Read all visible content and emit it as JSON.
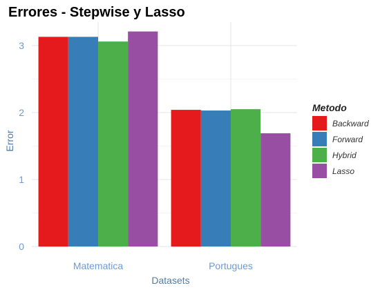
{
  "chart_data": {
    "type": "bar",
    "title": "Errores - Stepwise y Lasso",
    "xlabel": "Datasets",
    "ylabel": "Error",
    "categories": [
      "Matematica",
      "Portugues"
    ],
    "series": [
      {
        "name": "Backward",
        "color": "#E41A1C",
        "values": [
          3.13,
          2.04
        ]
      },
      {
        "name": "Forward",
        "color": "#377EB8",
        "values": [
          3.13,
          2.03
        ]
      },
      {
        "name": "Hybrid",
        "color": "#4DAF4A",
        "values": [
          3.06,
          2.05
        ]
      },
      {
        "name": "Lasso",
        "color": "#984EA3",
        "values": [
          3.21,
          1.69
        ]
      }
    ],
    "ylim": [
      0,
      3.35
    ],
    "yticks": [
      0,
      1,
      2,
      3
    ],
    "legend_title": "Metodo",
    "legend_position": "right",
    "grid": true,
    "axis_text_color": "#6A9BD8",
    "axis_title_color": "#4F7CAC"
  }
}
